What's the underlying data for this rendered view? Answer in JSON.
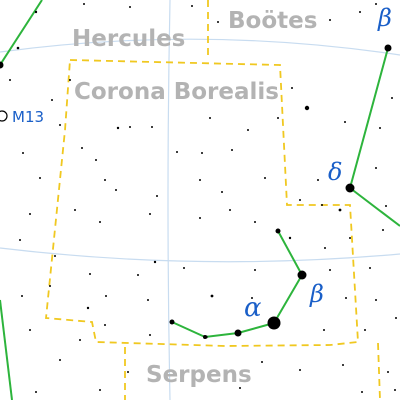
{
  "map": {
    "labels": {
      "hercules": "Hercules",
      "bootes": "Boötes",
      "corona_borealis": "Corona Borealis",
      "serpens": "Serpens",
      "m13": "M13"
    },
    "greek": {
      "beta_bootes": "β",
      "delta_serpens": "δ",
      "alpha_crb": "α",
      "beta_crb": "β"
    },
    "colors": {
      "grid": "#c8dcf0",
      "boundary": "#f0c820",
      "stick_figure": "#2db43c",
      "greek_label": "#1a5fc8",
      "constellation_label": "#b3b3b3",
      "star": "#000000"
    }
  }
}
